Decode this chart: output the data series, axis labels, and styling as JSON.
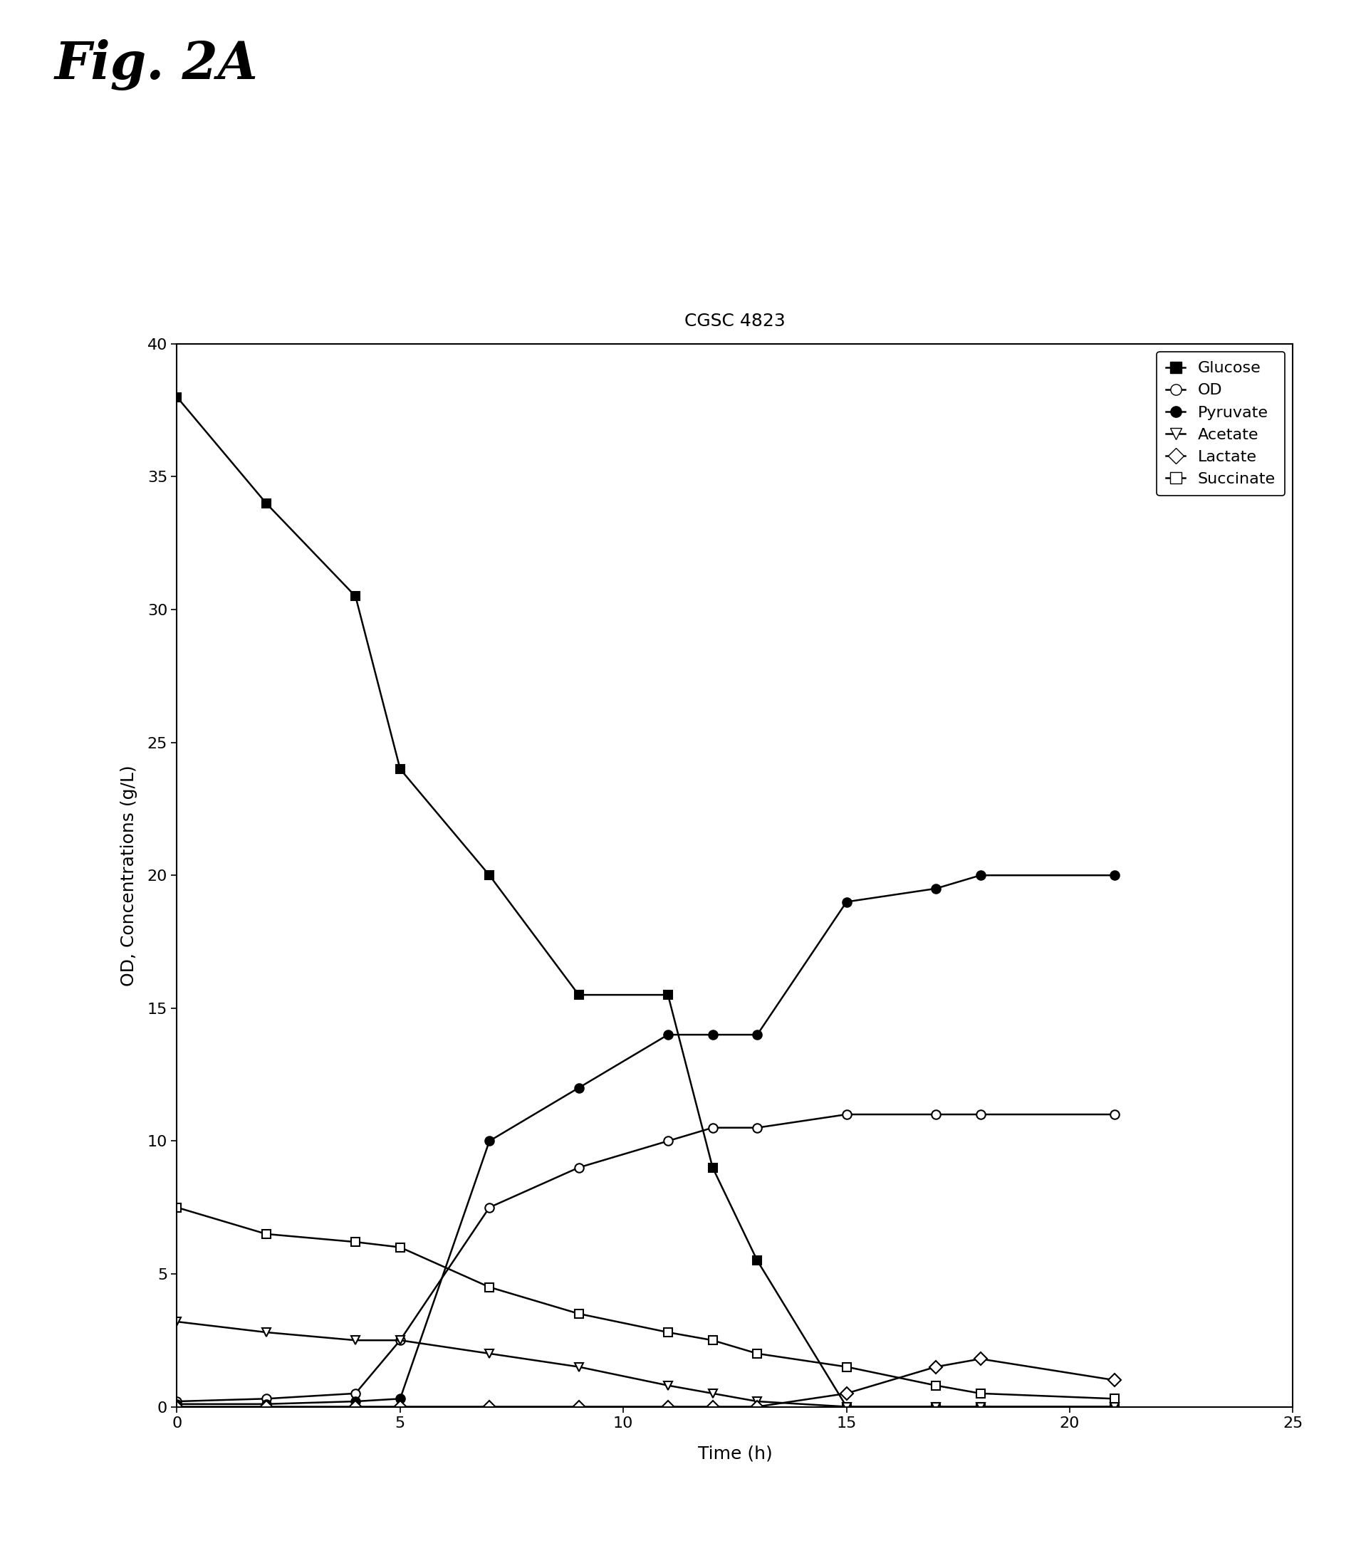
{
  "title": "CGSC 4823",
  "fig_label": "Fig. 2A",
  "xlabel": "Time (h)",
  "ylabel": "OD, Concentrations (g/L)",
  "xlim": [
    0,
    25
  ],
  "ylim": [
    0,
    40
  ],
  "xticks": [
    0,
    5,
    10,
    15,
    20,
    25
  ],
  "yticks": [
    0,
    5,
    10,
    15,
    20,
    25,
    30,
    35,
    40
  ],
  "glucose": {
    "x": [
      0,
      2,
      4,
      5,
      7,
      9,
      11,
      12,
      13,
      15,
      17,
      18,
      21
    ],
    "y": [
      38.0,
      34.0,
      30.5,
      24.0,
      20.0,
      15.5,
      15.5,
      9.0,
      5.5,
      0.0,
      0.0,
      0.0,
      0.0
    ],
    "label": "Glucose",
    "marker": "s",
    "fillstyle": "full"
  },
  "od": {
    "x": [
      0,
      2,
      4,
      5,
      7,
      9,
      11,
      12,
      13,
      15,
      17,
      18,
      21
    ],
    "y": [
      0.2,
      0.3,
      0.5,
      2.5,
      7.5,
      9.0,
      10.0,
      10.5,
      10.5,
      11.0,
      11.0,
      11.0,
      11.0
    ],
    "label": "OD",
    "marker": "o",
    "fillstyle": "none"
  },
  "pyruvate": {
    "x": [
      0,
      2,
      4,
      5,
      7,
      9,
      11,
      12,
      13,
      15,
      17,
      18,
      21
    ],
    "y": [
      0.1,
      0.1,
      0.2,
      0.3,
      10.0,
      12.0,
      14.0,
      14.0,
      14.0,
      19.0,
      19.5,
      20.0,
      20.0
    ],
    "label": "Pyruvate",
    "marker": "o",
    "fillstyle": "full"
  },
  "acetate": {
    "x": [
      0,
      2,
      4,
      5,
      7,
      9,
      11,
      12,
      13,
      15,
      17,
      18,
      21
    ],
    "y": [
      3.2,
      2.8,
      2.5,
      2.5,
      2.0,
      1.5,
      0.8,
      0.5,
      0.2,
      0.0,
      0.0,
      0.0,
      0.0
    ],
    "label": "Acetate",
    "marker": "v",
    "fillstyle": "none"
  },
  "lactate": {
    "x": [
      0,
      2,
      4,
      5,
      7,
      9,
      11,
      12,
      13,
      15,
      17,
      18,
      21
    ],
    "y": [
      0.0,
      0.0,
      0.0,
      0.0,
      0.0,
      0.0,
      0.0,
      0.0,
      0.0,
      0.5,
      1.5,
      1.8,
      1.0
    ],
    "label": "Lactate",
    "marker": "D",
    "fillstyle": "none"
  },
  "succinate": {
    "x": [
      0,
      2,
      4,
      5,
      7,
      9,
      11,
      12,
      13,
      15,
      17,
      18,
      21
    ],
    "y": [
      7.5,
      6.5,
      6.2,
      6.0,
      4.5,
      3.5,
      2.8,
      2.5,
      2.0,
      1.5,
      0.8,
      0.5,
      0.3
    ],
    "label": "Succinate",
    "marker": "s",
    "fillstyle": "none"
  },
  "background_color": "#ffffff",
  "title_fontsize": 18,
  "label_fontsize": 18,
  "tick_fontsize": 16,
  "legend_fontsize": 16,
  "fig_label_fontsize": 52
}
